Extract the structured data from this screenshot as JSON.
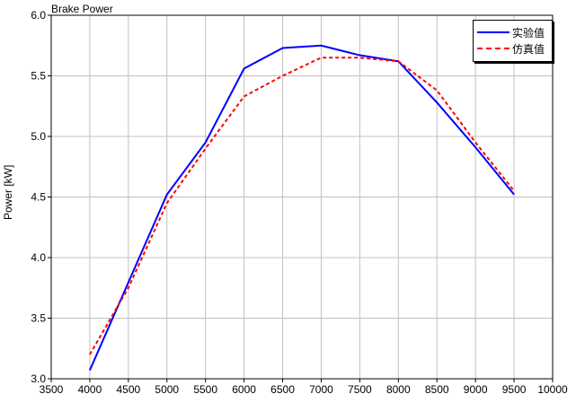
{
  "chart_data": {
    "type": "line",
    "title": "Brake Power",
    "xlabel": "",
    "ylabel": "Power [kW]",
    "xlim": [
      3500,
      10000
    ],
    "ylim": [
      3.0,
      6.0
    ],
    "xticks": [
      3500,
      4000,
      4500,
      5000,
      5500,
      6000,
      6500,
      7000,
      7500,
      8000,
      8500,
      9000,
      9500,
      10000
    ],
    "yticks": [
      3.0,
      3.5,
      4.0,
      4.5,
      5.0,
      5.5,
      6.0
    ],
    "grid": true,
    "legend_position": "top-right",
    "series": [
      {
        "name": "实验值",
        "color": "#0000ff",
        "style": "solid",
        "x": [
          4000,
          5000,
          5500,
          6000,
          6500,
          7000,
          7500,
          8000,
          8500,
          9000,
          9500
        ],
        "y": [
          3.07,
          4.52,
          4.95,
          5.56,
          5.73,
          5.75,
          5.67,
          5.62,
          5.28,
          4.91,
          4.52
        ]
      },
      {
        "name": "仿真值",
        "color": "#ff0000",
        "style": "dashed",
        "x": [
          4000,
          4500,
          5000,
          5500,
          6000,
          6500,
          7000,
          7500,
          8000,
          8500,
          9000,
          9500
        ],
        "y": [
          3.2,
          3.75,
          4.45,
          4.9,
          5.33,
          5.5,
          5.65,
          5.65,
          5.62,
          5.38,
          4.95,
          4.55
        ]
      }
    ]
  }
}
